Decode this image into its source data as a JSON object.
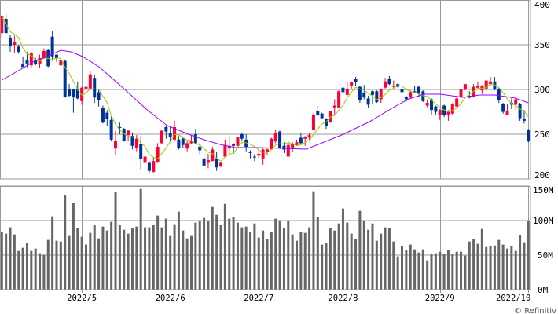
{
  "chart_data": [
    {
      "type": "candlestick",
      "title": "",
      "ylim": [
        200,
        400
      ],
      "y_ticks": [
        "400",
        "350",
        "300",
        "250",
        "200"
      ],
      "y_tick_values": [
        400,
        350,
        300,
        250,
        200
      ],
      "grid": true,
      "colors": {
        "up": "#ff0033",
        "down": "#003399",
        "ma_short": "#99cc00",
        "ma_long": "#9900ff",
        "grid": "#999999"
      },
      "ohlc": [
        [
          363,
          383,
          358,
          382
        ],
        [
          379,
          385,
          362,
          363
        ],
        [
          358,
          361,
          342,
          349
        ],
        [
          350,
          360,
          341,
          353
        ],
        [
          348,
          350,
          340,
          342
        ],
        [
          328,
          337,
          325,
          325
        ],
        [
          333,
          342,
          325,
          329
        ],
        [
          327,
          342,
          324,
          341
        ],
        [
          333,
          335,
          327,
          328
        ],
        [
          329,
          339,
          324,
          335
        ],
        [
          335,
          346,
          334,
          343
        ],
        [
          344,
          345,
          325,
          326
        ],
        [
          359,
          365,
          332,
          337
        ],
        [
          339,
          339,
          331,
          335
        ],
        [
          327,
          337,
          326,
          333
        ],
        [
          332,
          333,
          291,
          292
        ],
        [
          300,
          306,
          292,
          293
        ],
        [
          300,
          301,
          274,
          292
        ],
        [
          301,
          309,
          289,
          290
        ],
        [
          287,
          303,
          283,
          302
        ],
        [
          301,
          308,
          296,
          303
        ],
        [
          301,
          320,
          301,
          317
        ],
        [
          313,
          316,
          285,
          291
        ],
        [
          297,
          300,
          281,
          288
        ],
        [
          279,
          282,
          262,
          263
        ],
        [
          274,
          277,
          259,
          267
        ],
        [
          266,
          270,
          242,
          244
        ],
        [
          234,
          254,
          227,
          243
        ],
        [
          258,
          263,
          250,
          257
        ],
        [
          256,
          257,
          242,
          242
        ],
        [
          249,
          255,
          242,
          254
        ],
        [
          248,
          252,
          233,
          237
        ],
        [
          235,
          249,
          231,
          245
        ],
        [
          239,
          248,
          211,
          222
        ],
        [
          218,
          228,
          213,
          225
        ],
        [
          218,
          220,
          206,
          209
        ],
        [
          208,
          224,
          207,
          220
        ],
        [
          219,
          240,
          218,
          236
        ],
        [
          240,
          254,
          239,
          254
        ],
        [
          258,
          260,
          245,
          253
        ],
        [
          251,
          259,
          242,
          247
        ],
        [
          244,
          265,
          242,
          258
        ],
        [
          244,
          248,
          233,
          235
        ],
        [
          245,
          246,
          235,
          238
        ],
        [
          234,
          242,
          231,
          240
        ],
        [
          240,
          249,
          239,
          242
        ],
        [
          250,
          256,
          239,
          240
        ],
        [
          236,
          240,
          228,
          232
        ],
        [
          223,
          228,
          214,
          215
        ],
        [
          218,
          228,
          212,
          221
        ],
        [
          220,
          236,
          220,
          233
        ],
        [
          223,
          230,
          209,
          213
        ],
        [
          214,
          219,
          213,
          218
        ],
        [
          225,
          244,
          225,
          238
        ],
        [
          234,
          248,
          228,
          237
        ],
        [
          239,
          240,
          228,
          237
        ],
        [
          237,
          247,
          237,
          247
        ],
        [
          250,
          252,
          242,
          245
        ],
        [
          244,
          250,
          231,
          236
        ],
        [
          230,
          232,
          223,
          229
        ],
        [
          225,
          228,
          220,
          224
        ],
        [
          226,
          233,
          223,
          228
        ],
        [
          223,
          234,
          216,
          233
        ],
        [
          230,
          235,
          227,
          233
        ],
        [
          233,
          246,
          233,
          245
        ],
        [
          242,
          255,
          240,
          251
        ],
        [
          253,
          254,
          234,
          235
        ],
        [
          237,
          241,
          229,
          233
        ],
        [
          225,
          242,
          225,
          238
        ],
        [
          234,
          241,
          230,
          239
        ],
        [
          238,
          244,
          237,
          241
        ],
        [
          246,
          251,
          239,
          240
        ],
        [
          245,
          248,
          237,
          247
        ],
        [
          247,
          251,
          242,
          249
        ],
        [
          255,
          273,
          254,
          272
        ],
        [
          276,
          282,
          270,
          271
        ],
        [
          273,
          274,
          267,
          268
        ],
        [
          267,
          268,
          256,
          259
        ],
        [
          263,
          276,
          263,
          276
        ],
        [
          280,
          289,
          272,
          282
        ],
        [
          280,
          299,
          279,
          298
        ],
        [
          302,
          312,
          294,
          297
        ],
        [
          294,
          308,
          293,
          301
        ],
        [
          304,
          309,
          301,
          308
        ],
        [
          312,
          314,
          304,
          308
        ],
        [
          303,
          304,
          285,
          288
        ],
        [
          296,
          305,
          289,
          291
        ],
        [
          290,
          293,
          279,
          283
        ],
        [
          298,
          299,
          284,
          294
        ],
        [
          298,
          299,
          285,
          286
        ],
        [
          289,
          301,
          285,
          301
        ],
        [
          302,
          313,
          301,
          309
        ],
        [
          312,
          315,
          305,
          306
        ],
        [
          303,
          310,
          300,
          304
        ],
        [
          306,
          307,
          302,
          303
        ],
        [
          300,
          302,
          292,
          297
        ],
        [
          292,
          293,
          286,
          289
        ],
        [
          291,
          299,
          290,
          297
        ],
        [
          298,
          304,
          296,
          297
        ],
        [
          303,
          304,
          292,
          295
        ],
        [
          298,
          299,
          286,
          287
        ],
        [
          282,
          289,
          280,
          285
        ],
        [
          289,
          290,
          272,
          277
        ],
        [
          281,
          282,
          271,
          275
        ],
        [
          271,
          278,
          266,
          277
        ],
        [
          282,
          283,
          269,
          271
        ],
        [
          272,
          277,
          265,
          275
        ],
        [
          273,
          285,
          272,
          284
        ],
        [
          281,
          293,
          280,
          290
        ],
        [
          291,
          301,
          290,
          300
        ],
        [
          300,
          306,
          299,
          306
        ],
        [
          293,
          298,
          290,
          291
        ],
        [
          292,
          306,
          291,
          303
        ],
        [
          302,
          309,
          301,
          304
        ],
        [
          299,
          305,
          295,
          304
        ],
        [
          301,
          311,
          298,
          310
        ],
        [
          306,
          314,
          305,
          309
        ],
        [
          309,
          314,
          299,
          300
        ],
        [
          300,
          302,
          285,
          288
        ],
        [
          284,
          285,
          273,
          275
        ],
        [
          271,
          284,
          271,
          276
        ],
        [
          285,
          290,
          278,
          283
        ],
        [
          283,
          290,
          277,
          289
        ],
        [
          284,
          285,
          265,
          268
        ],
        [
          267,
          277,
          262,
          265
        ],
        [
          255,
          256,
          241,
          242
        ]
      ],
      "ma_long": [
        [
          0,
          310.5
        ],
        [
          4.6,
          322.8
        ],
        [
          8,
          332.5
        ],
        [
          10.8,
          336.8
        ],
        [
          14,
          343.9
        ],
        [
          16.4,
          342.1
        ],
        [
          19.2,
          336.8
        ],
        [
          23.3,
          324.6
        ],
        [
          29.4,
          299.1
        ],
        [
          34.5,
          277.2
        ],
        [
          39.3,
          259.6
        ],
        [
          44.3,
          250
        ],
        [
          48,
          243.9
        ],
        [
          51.8,
          238.6
        ],
        [
          55.5,
          235.1
        ],
        [
          61.1,
          235.1
        ],
        [
          72.3,
          233.3
        ],
        [
          76.1,
          240.4
        ],
        [
          81.1,
          250
        ],
        [
          87.3,
          264
        ],
        [
          92.9,
          279.8
        ],
        [
          96.6,
          289.5
        ],
        [
          100.3,
          294.7
        ],
        [
          104.1,
          294.7
        ],
        [
          109.6,
          291.2
        ],
        [
          113.4,
          293.9
        ],
        [
          117.1,
          293.9
        ],
        [
          121.8,
          290.4
        ],
        [
          125,
          285.1
        ]
      ],
      "x_ticks": [
        {
          "label": "2022/5",
          "index": 19
        },
        {
          "label": "2022/6",
          "index": 40
        },
        {
          "label": "2022/7",
          "index": 61
        },
        {
          "label": "2022/8",
          "index": 81
        },
        {
          "label": "2022/9",
          "index": 104
        },
        {
          "label": "2022/10",
          "index": 125
        }
      ]
    },
    {
      "type": "bar",
      "title": "",
      "ylim": [
        0,
        150
      ],
      "unit": "M",
      "y_ticks": [
        "150M",
        "100M",
        "50M",
        "0M"
      ],
      "y_tick_values": [
        150,
        100,
        50,
        0
      ],
      "color": "#666666",
      "values": [
        83.3,
        81.1,
        90.2,
        79.9,
        56.1,
        60.6,
        67.4,
        56.1,
        59.5,
        52.7,
        50.4,
        72,
        106.1,
        70.8,
        69.7,
        136.7,
        77.7,
        125.4,
        89,
        76.5,
        65.2,
        82.2,
        93.6,
        74.2,
        91.3,
        85.6,
        98.1,
        141.3,
        93.6,
        86.7,
        81.1,
        89,
        91.3,
        145.8,
        90.2,
        90.2,
        93.6,
        107.2,
        90.2,
        102.7,
        77.7,
        94.7,
        112.9,
        85.6,
        74.2,
        77.7,
        97,
        99.2,
        103.8,
        99.2,
        119.7,
        108.3,
        93.6,
        124.2,
        102.7,
        104.9,
        97,
        90.2,
        91.3,
        83.3,
        95.8,
        75.4,
        85.6,
        73.1,
        83.3,
        102.7,
        100.4,
        89,
        99.2,
        79.9,
        70.8,
        83.3,
        82.2,
        90.2,
        142.4,
        104.9,
        65.2,
        67.4,
        89,
        85.6,
        95.8,
        117.4,
        97,
        81.1,
        73.1,
        114,
        100.4,
        86.7,
        95.8,
        70.8,
        81.1,
        90.2,
        89,
        69.7,
        48.1,
        62.9,
        57.2,
        65.2,
        58.3,
        53.8,
        58.3,
        42.4,
        51.5,
        52.7,
        54.9,
        51.5,
        57.2,
        51.5,
        54.9,
        54.9,
        49.2,
        69.7,
        73.1,
        66.3,
        87.9,
        61.7,
        62.9,
        64,
        72,
        65.2,
        59.5,
        62.9,
        56.1,
        78.8,
        68.6,
        99.2
      ]
    }
  ],
  "credit": "© Refinitiv"
}
